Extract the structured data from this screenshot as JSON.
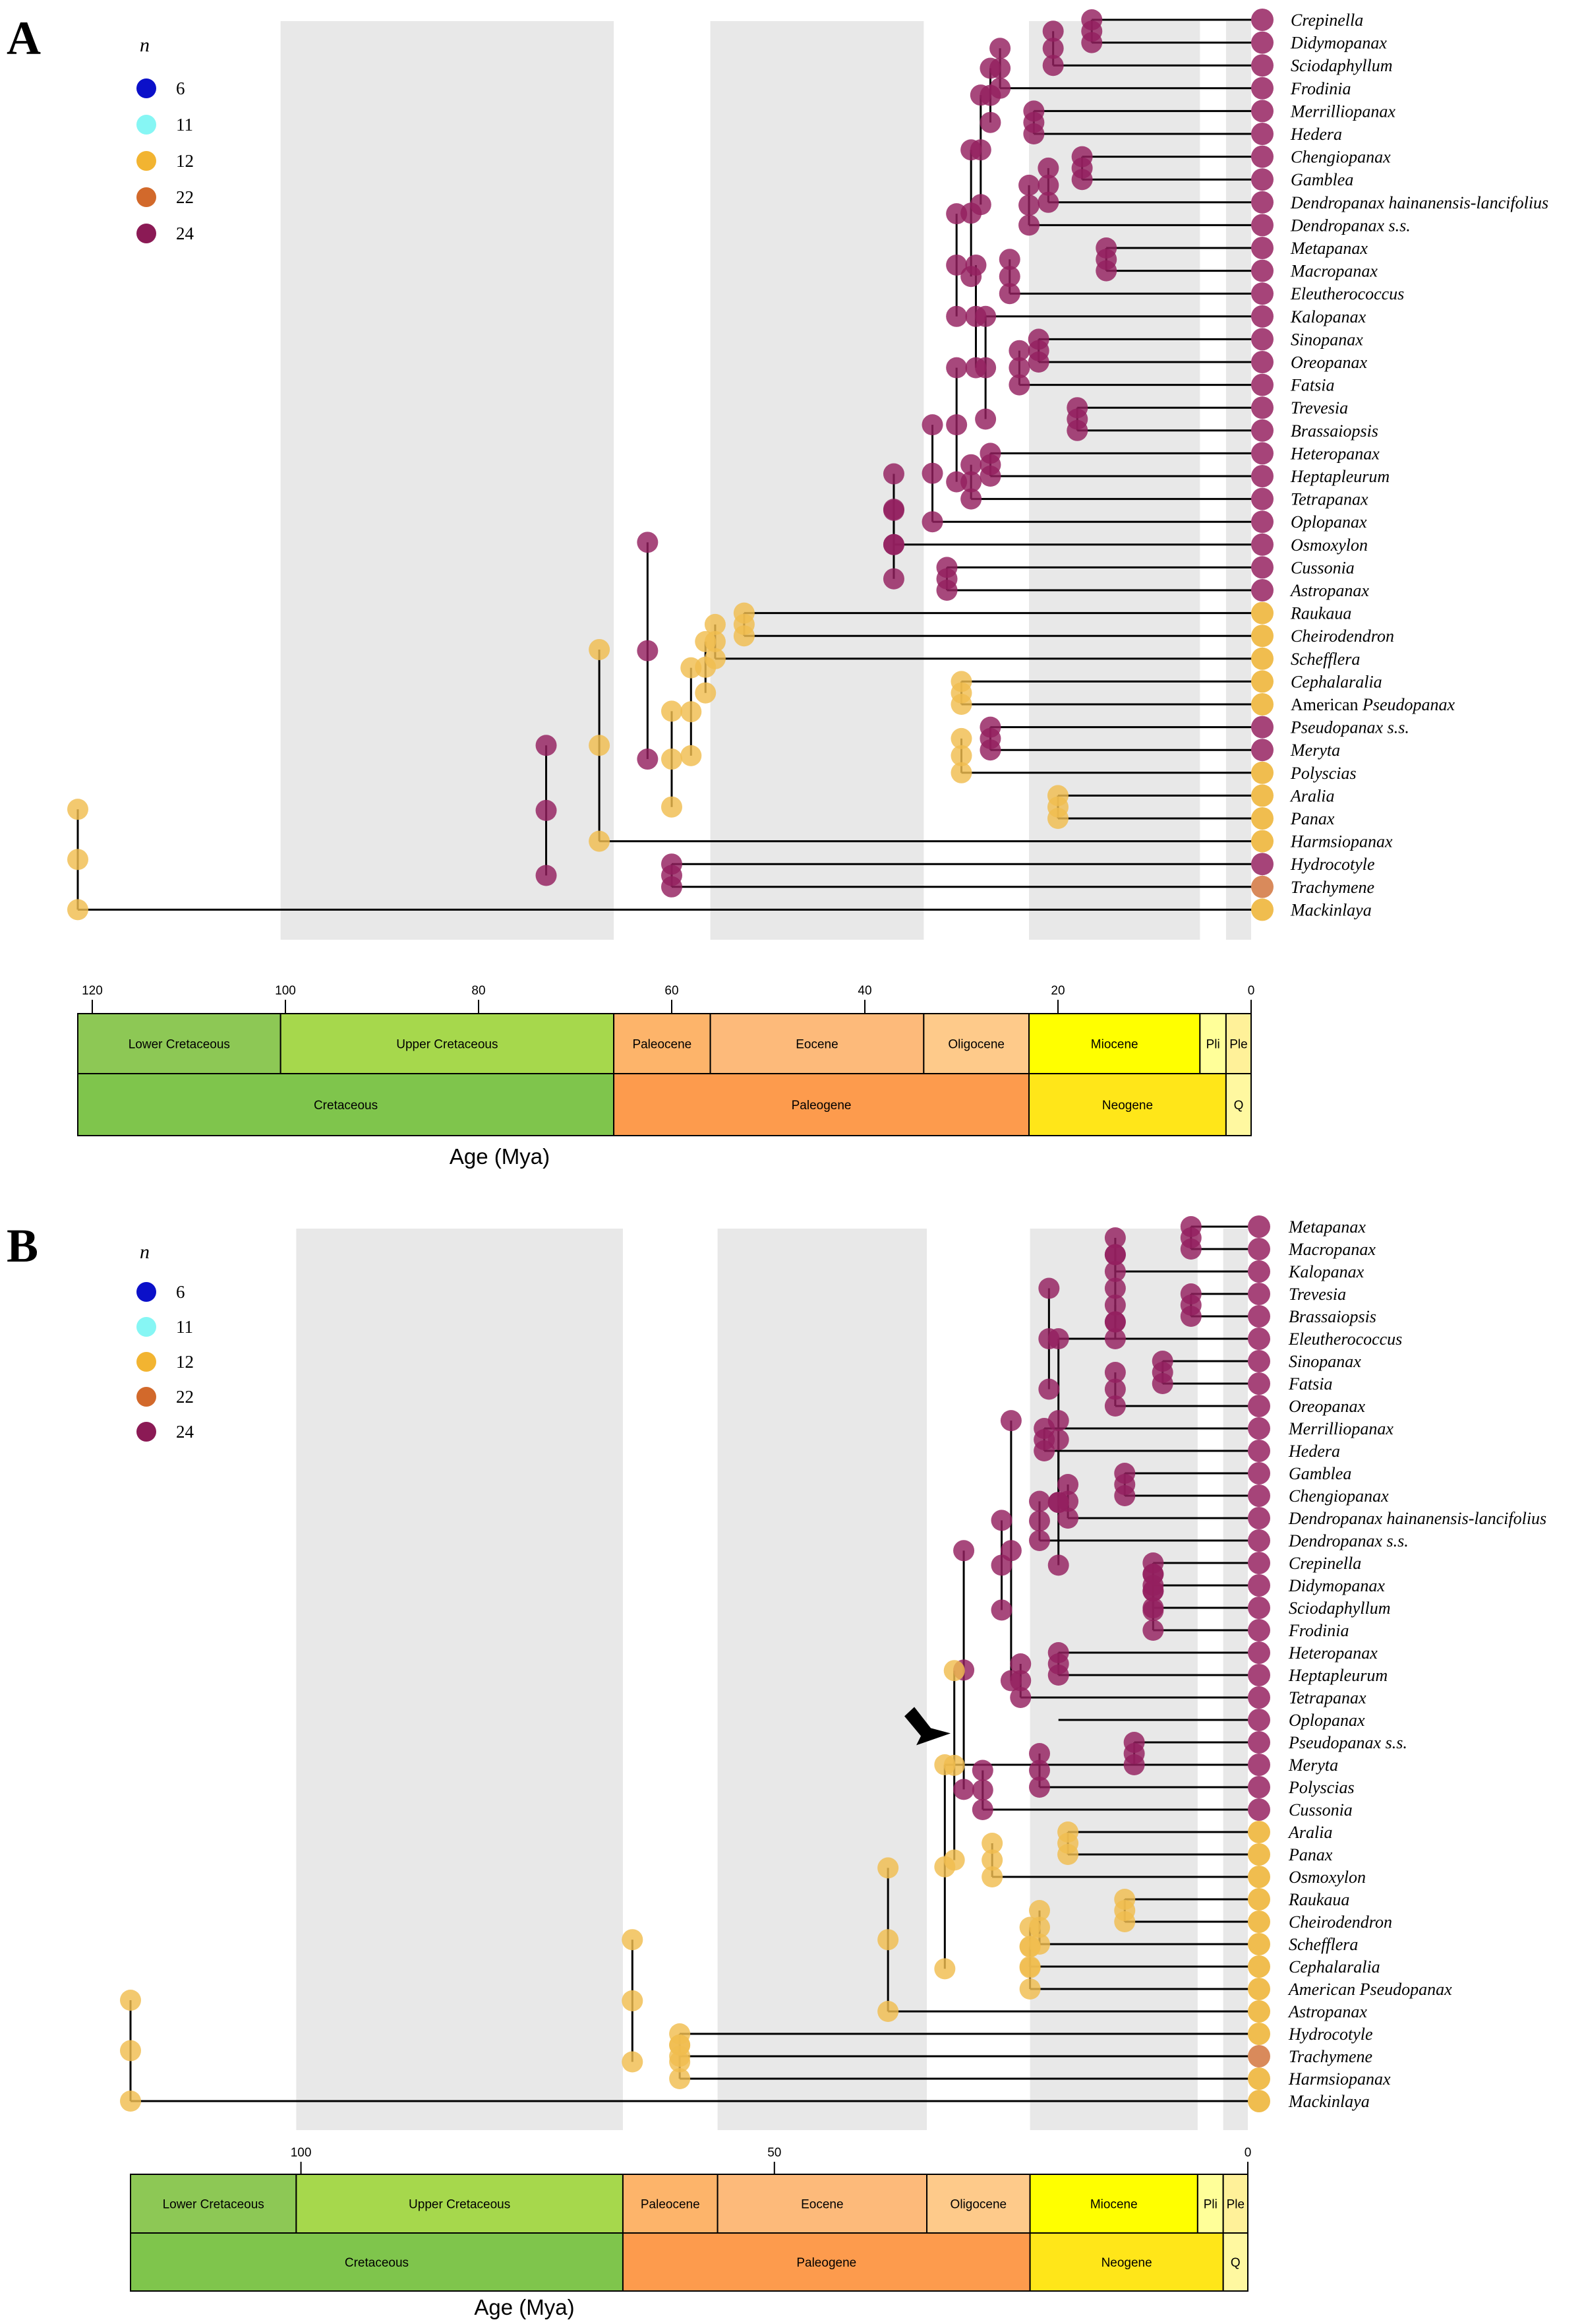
{
  "legend": {
    "title": "n",
    "items": [
      {
        "label": "6",
        "color": "#0b10c9"
      },
      {
        "label": "11",
        "color": "#86f6f4"
      },
      {
        "label": "12",
        "color": "#f2b431"
      },
      {
        "label": "22",
        "color": "#d2692b"
      },
      {
        "label": "24",
        "color": "#8b1a55"
      }
    ]
  },
  "colors": {
    "n24_tip": "#a64479",
    "n24_node": "#94205f",
    "n12": "#f0bd4f",
    "n22": "#d98a5b",
    "shade": "#e8e8e8",
    "line": "#000000",
    "lower_cret": "#8dc855",
    "upper_cret": "#a6d84c",
    "paleocene": "#fdb46a",
    "eocene": "#fdba7a",
    "oligocene": "#feca8a",
    "miocene": "#ffff00",
    "pliocene": "#ffff99",
    "pleistocene": "#fff199",
    "cretaceous": "#7fc54c",
    "paleogene": "#fd9b4d",
    "neogene": "#ffe619",
    "quaternary": "#fff8a0"
  },
  "panels": [
    {
      "letter": "A",
      "axis_title": "Age (Mya)",
      "axis_ticks": [
        "120",
        "100",
        "80",
        "60",
        "40",
        "20",
        "0"
      ],
      "tick_ages": [
        120,
        100,
        80,
        60,
        40,
        20,
        0
      ],
      "max_age": 121.5,
      "shaded_epochs": [
        [
          100.5,
          66
        ],
        [
          56,
          33.9
        ],
        [
          23,
          5.3
        ],
        [
          2.6,
          0
        ]
      ],
      "epochs": [
        {
          "label": "Lower Cretaceous",
          "from": 121.5,
          "to": 100.5,
          "color_key": "lower_cret"
        },
        {
          "label": "Upper Cretaceous",
          "from": 100.5,
          "to": 66,
          "color_key": "upper_cret"
        },
        {
          "label": "Paleocene",
          "from": 66,
          "to": 56,
          "color_key": "paleocene"
        },
        {
          "label": "Eocene",
          "from": 56,
          "to": 33.9,
          "color_key": "eocene"
        },
        {
          "label": "Oligocene",
          "from": 33.9,
          "to": 23,
          "color_key": "oligocene"
        },
        {
          "label": "Miocene",
          "from": 23,
          "to": 5.3,
          "color_key": "miocene"
        },
        {
          "label": "Pli",
          "from": 5.3,
          "to": 2.6,
          "color_key": "pliocene"
        },
        {
          "label": "Ple",
          "from": 2.6,
          "to": 0,
          "color_key": "pleistocene"
        }
      ],
      "periods": [
        {
          "label": "Cretaceous",
          "from": 121.5,
          "to": 66,
          "color_key": "cretaceous"
        },
        {
          "label": "Paleogene",
          "from": 66,
          "to": 23,
          "color_key": "paleogene"
        },
        {
          "label": "Neogene",
          "from": 23,
          "to": 2.6,
          "color_key": "neogene"
        },
        {
          "label": "Q",
          "from": 2.6,
          "to": 0,
          "color_key": "quaternary"
        }
      ],
      "taxa": [
        {
          "pre": "",
          "name": "Crepinella",
          "n": 24
        },
        {
          "pre": "",
          "name": "Didymopanax",
          "n": 24
        },
        {
          "pre": "",
          "name": "Sciodaphyllum",
          "n": 24
        },
        {
          "pre": "",
          "name": "Frodinia",
          "n": 24
        },
        {
          "pre": "",
          "name": "Merrilliopanax",
          "n": 24
        },
        {
          "pre": "",
          "name": "Hedera",
          "n": 24
        },
        {
          "pre": "",
          "name": "Chengiopanax",
          "n": 24
        },
        {
          "pre": "",
          "name": "Gamblea",
          "n": 24
        },
        {
          "pre": "",
          "name": "Dendropanax hainanensis-lancifolius",
          "n": 24
        },
        {
          "pre": "",
          "name": "Dendropanax s.s.",
          "n": 24
        },
        {
          "pre": "",
          "name": "Metapanax",
          "n": 24
        },
        {
          "pre": "",
          "name": "Macropanax",
          "n": 24
        },
        {
          "pre": "",
          "name": "Eleutherococcus",
          "n": 24
        },
        {
          "pre": "",
          "name": "Kalopanax",
          "n": 24
        },
        {
          "pre": "",
          "name": "Sinopanax",
          "n": 24
        },
        {
          "pre": "",
          "name": "Oreopanax",
          "n": 24
        },
        {
          "pre": "",
          "name": "Fatsia",
          "n": 24
        },
        {
          "pre": "",
          "name": "Trevesia",
          "n": 24
        },
        {
          "pre": "",
          "name": "Brassaiopsis",
          "n": 24
        },
        {
          "pre": "",
          "name": "Heteropanax",
          "n": 24
        },
        {
          "pre": "",
          "name": "Heptapleurum",
          "n": 24
        },
        {
          "pre": "",
          "name": "Tetrapanax",
          "n": 24
        },
        {
          "pre": "",
          "name": "Oplopanax",
          "n": 24
        },
        {
          "pre": "",
          "name": "Osmoxylon",
          "n": 24
        },
        {
          "pre": "",
          "name": "Cussonia",
          "n": 24
        },
        {
          "pre": "",
          "name": "Astropanax",
          "n": 24
        },
        {
          "pre": "",
          "name": "Raukaua",
          "n": 12
        },
        {
          "pre": "",
          "name": "Cheirodendron",
          "n": 12
        },
        {
          "pre": "",
          "name": "Schefflera",
          "n": 12
        },
        {
          "pre": "",
          "name": "Cephalaralia",
          "n": 12
        },
        {
          "pre": "American ",
          "name": "Pseudopanax",
          "n": 12
        },
        {
          "pre": "",
          "name": "Pseudopanax s.s.",
          "n": 24
        },
        {
          "pre": "",
          "name": "Meryta",
          "n": 24
        },
        {
          "pre": "",
          "name": "Polyscias",
          "n": 12
        },
        {
          "pre": "",
          "name": "Aralia",
          "n": 12
        },
        {
          "pre": "",
          "name": "Panax",
          "n": 12
        },
        {
          "pre": "",
          "name": "Harmsiopanax",
          "n": 12
        },
        {
          "pre": "",
          "name": "Hydrocotyle",
          "n": 24
        },
        {
          "pre": "",
          "name": "Trachymene",
          "n": 22
        },
        {
          "pre": "",
          "name": "Mackinlaya",
          "n": 12
        }
      ]
    },
    {
      "letter": "B",
      "axis_title": "Age (Mya)",
      "axis_ticks": [
        "100",
        "50",
        "0"
      ],
      "tick_ages": [
        100,
        50,
        0
      ],
      "max_age": 118,
      "shaded_epochs": [
        [
          100.5,
          66
        ],
        [
          56,
          33.9
        ],
        [
          23,
          5.3
        ],
        [
          2.6,
          0
        ]
      ],
      "epochs": [
        {
          "label": "Lower Cretaceous",
          "from": 118,
          "to": 100.5,
          "color_key": "lower_cret"
        },
        {
          "label": "Upper Cretaceous",
          "from": 100.5,
          "to": 66,
          "color_key": "upper_cret"
        },
        {
          "label": "Paleocene",
          "from": 66,
          "to": 56,
          "color_key": "paleocene"
        },
        {
          "label": "Eocene",
          "from": 56,
          "to": 33.9,
          "color_key": "eocene"
        },
        {
          "label": "Oligocene",
          "from": 33.9,
          "to": 23,
          "color_key": "oligocene"
        },
        {
          "label": "Miocene",
          "from": 23,
          "to": 5.3,
          "color_key": "miocene"
        },
        {
          "label": "Pli",
          "from": 5.3,
          "to": 2.6,
          "color_key": "pliocene"
        },
        {
          "label": "Ple",
          "from": 2.6,
          "to": 0,
          "color_key": "pleistocene"
        }
      ],
      "periods": [
        {
          "label": "Cretaceous",
          "from": 118,
          "to": 66,
          "color_key": "cretaceous"
        },
        {
          "label": "Paleogene",
          "from": 66,
          "to": 23,
          "color_key": "paleogene"
        },
        {
          "label": "Neogene",
          "from": 23,
          "to": 2.6,
          "color_key": "neogene"
        },
        {
          "label": "Q",
          "from": 2.6,
          "to": 0,
          "color_key": "quaternary"
        }
      ],
      "taxa": [
        {
          "pre": "",
          "name": "Metapanax",
          "n": 24
        },
        {
          "pre": "",
          "name": "Macropanax",
          "n": 24
        },
        {
          "pre": "",
          "name": "Kalopanax",
          "n": 24
        },
        {
          "pre": "",
          "name": "Trevesia",
          "n": 24
        },
        {
          "pre": "",
          "name": "Brassaiopsis",
          "n": 24
        },
        {
          "pre": "",
          "name": "Eleutherococcus",
          "n": 24
        },
        {
          "pre": "",
          "name": "Sinopanax",
          "n": 24
        },
        {
          "pre": "",
          "name": "Fatsia",
          "n": 24
        },
        {
          "pre": "",
          "name": "Oreopanax",
          "n": 24
        },
        {
          "pre": "",
          "name": "Merrilliopanax",
          "n": 24
        },
        {
          "pre": "",
          "name": "Hedera",
          "n": 24
        },
        {
          "pre": "",
          "name": "Gamblea",
          "n": 24
        },
        {
          "pre": "",
          "name": "Chengiopanax",
          "n": 24
        },
        {
          "pre": "",
          "name": "Dendropanax hainanensis-lancifolius",
          "n": 24
        },
        {
          "pre": "",
          "name": "Dendropanax s.s.",
          "n": 24
        },
        {
          "pre": "",
          "name": "Crepinella",
          "n": 24
        },
        {
          "pre": "",
          "name": "Didymopanax",
          "n": 24
        },
        {
          "pre": "",
          "name": "Sciodaphyllum",
          "n": 24
        },
        {
          "pre": "",
          "name": "Frodinia",
          "n": 24
        },
        {
          "pre": "",
          "name": "Heteropanax",
          "n": 24
        },
        {
          "pre": "",
          "name": "Heptapleurum",
          "n": 24
        },
        {
          "pre": "",
          "name": "Tetrapanax",
          "n": 24
        },
        {
          "pre": "",
          "name": "Oplopanax",
          "n": 24
        },
        {
          "pre": "",
          "name": "Pseudopanax s.s.",
          "n": 24
        },
        {
          "pre": "",
          "name": "Meryta",
          "n": 24
        },
        {
          "pre": "",
          "name": "Polyscias",
          "n": 24
        },
        {
          "pre": "",
          "name": "Cussonia",
          "n": 24
        },
        {
          "pre": "",
          "name": "Aralia",
          "n": 12
        },
        {
          "pre": "",
          "name": "Panax",
          "n": 12
        },
        {
          "pre": "",
          "name": "Osmoxylon",
          "n": 12
        },
        {
          "pre": "",
          "name": "Raukaua",
          "n": 12
        },
        {
          "pre": "",
          "name": "Cheirodendron",
          "n": 12
        },
        {
          "pre": "",
          "name": "Schefflera",
          "n": 12
        },
        {
          "pre": "",
          "name": "Cephalaralia",
          "n": 12
        },
        {
          "pre": "",
          "name": "American Pseudopanax",
          "n": 12
        },
        {
          "pre": "",
          "name": "Astropanax",
          "n": 12
        },
        {
          "pre": "",
          "name": "Hydrocotyle",
          "n": 12
        },
        {
          "pre": "",
          "name": "Trachymene",
          "n": 22
        },
        {
          "pre": "",
          "name": "Harmsiopanax",
          "n": 12
        },
        {
          "pre": "",
          "name": "Mackinlaya",
          "n": 12
        }
      ]
    }
  ]
}
